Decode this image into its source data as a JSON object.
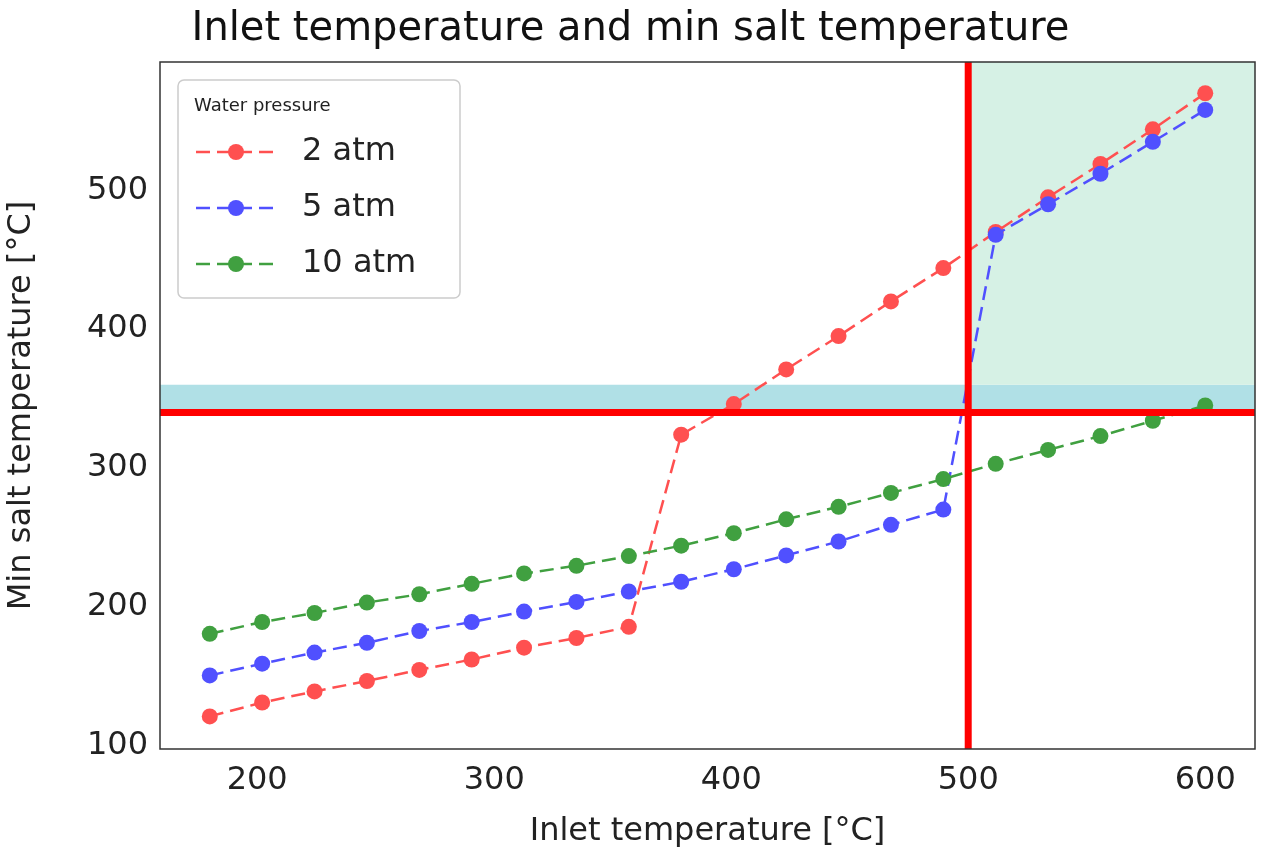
{
  "chart_data": {
    "type": "line",
    "title": "Inlet temperature and min salt temperature",
    "xlabel": "Inlet temperature [°C]",
    "ylabel": "Min salt temperature [°C]",
    "legend_title": "Water pressure",
    "x": [
      180,
      202.1,
      224.2,
      246.3,
      268.4,
      290.5,
      312.6,
      334.7,
      356.8,
      378.9,
      401.1,
      423.2,
      445.3,
      467.4,
      489.5,
      511.6,
      533.7,
      555.8,
      577.9,
      600
    ],
    "series": [
      {
        "name": "2 atm",
        "color": "#ff5050",
        "values": [
          121,
          131,
          139,
          146.5,
          154.5,
          162,
          170.5,
          177.5,
          185.5,
          324,
          346,
          371,
          395,
          420,
          444,
          470,
          495,
          519,
          544,
          570
        ]
      },
      {
        "name": "5 atm",
        "color": "#5050ff",
        "values": [
          150.5,
          159,
          167,
          174,
          182.5,
          189,
          196.5,
          203.5,
          211,
          218,
          227,
          237,
          247,
          259,
          270,
          468,
          490,
          512,
          535,
          558
        ]
      },
      {
        "name": "10 atm",
        "color": "#40a040",
        "values": [
          180.5,
          189,
          195.5,
          203,
          209,
          216.5,
          224,
          229.5,
          236.5,
          244,
          253,
          263,
          272,
          282,
          292,
          303,
          313,
          323,
          334,
          345
        ]
      }
    ],
    "xlim": [
      159,
      621
    ],
    "xticks": [
      200,
      300,
      400,
      500,
      600
    ],
    "ylim": [
      97.5,
      592.5
    ],
    "yticks": [
      100,
      200,
      300,
      400,
      500
    ],
    "ref_lines": [
      {
        "axis": "x",
        "value": 500,
        "label": null,
        "color": "#ff0000"
      },
      {
        "axis": "y",
        "value": 340,
        "label": null,
        "color": "#ff0000"
      }
    ],
    "bands": [
      {
        "axis": "y",
        "from": 340,
        "to": 360,
        "label": null,
        "color": "#b0e0e6"
      },
      {
        "axis": "x",
        "from": 500,
        "to": 621,
        "label": null,
        "color": "#d6f1e5"
      }
    ],
    "grid": false,
    "legend": "top left",
    "marker": "circle",
    "line_style": "dashed"
  }
}
